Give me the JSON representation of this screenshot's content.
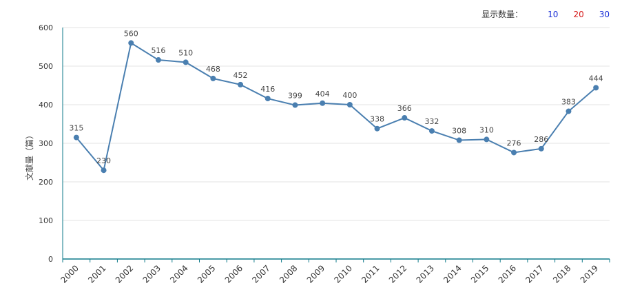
{
  "display_count": {
    "label": "显示数量：",
    "options": [
      {
        "text": "10",
        "color": "#1a2fd6"
      },
      {
        "text": "20",
        "color": "#d61a1a"
      },
      {
        "text": "30",
        "color": "#1a2fd6"
      }
    ]
  },
  "chart_data": {
    "type": "line",
    "title": "",
    "xlabel": "",
    "ylabel": "文献量（篇）",
    "ylim": [
      0,
      600
    ],
    "yticks": [
      0,
      100,
      200,
      300,
      400,
      500,
      600
    ],
    "x": [
      "2000",
      "2001",
      "2002",
      "2003",
      "2004",
      "2005",
      "2006",
      "2007",
      "2008",
      "2009",
      "2010",
      "2011",
      "2012",
      "2013",
      "2014",
      "2015",
      "2016",
      "2017",
      "2018",
      "2019"
    ],
    "values": [
      315,
      230,
      560,
      516,
      510,
      468,
      452,
      416,
      399,
      404,
      400,
      338,
      366,
      332,
      308,
      310,
      276,
      286,
      383,
      444
    ],
    "grid": true,
    "line_color": "#4a7fb0",
    "axis_color": "#0e7a8a"
  }
}
